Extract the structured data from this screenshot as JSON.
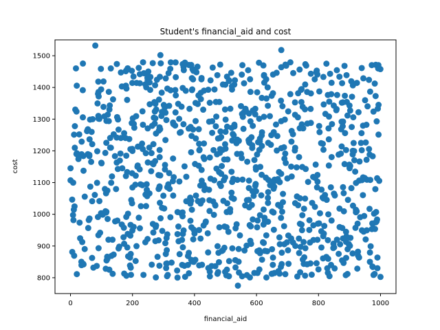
{
  "chart_data": {
    "type": "scatter",
    "title": "Student's financial_aid and cost",
    "xlabel": "financial_aid",
    "ylabel": "cost",
    "xlim": [
      -50,
      1050
    ],
    "ylim": [
      750,
      1550
    ],
    "xticks": [
      0,
      200,
      400,
      600,
      800,
      1000
    ],
    "yticks": [
      800,
      900,
      1000,
      1100,
      1200,
      1300,
      1400,
      1500
    ],
    "xtick_labels": [
      "0",
      "200",
      "400",
      "600",
      "800",
      "1000"
    ],
    "ytick_labels": [
      "800",
      "900",
      "1000",
      "1100",
      "1200",
      "1300",
      "1400",
      "1500"
    ],
    "grid": false,
    "marker_color": "#1f77b4",
    "n_points": 1000,
    "x_range": [
      0,
      1000
    ],
    "y_range": [
      775,
      1532
    ],
    "notable_points": [
      {
        "x": 80,
        "y": 1532
      },
      {
        "x": 540,
        "y": 775
      },
      {
        "x": 680,
        "y": 1518
      },
      {
        "x": 290,
        "y": 1502
      },
      {
        "x": 130,
        "y": 1460
      },
      {
        "x": 990,
        "y": 830
      }
    ]
  }
}
